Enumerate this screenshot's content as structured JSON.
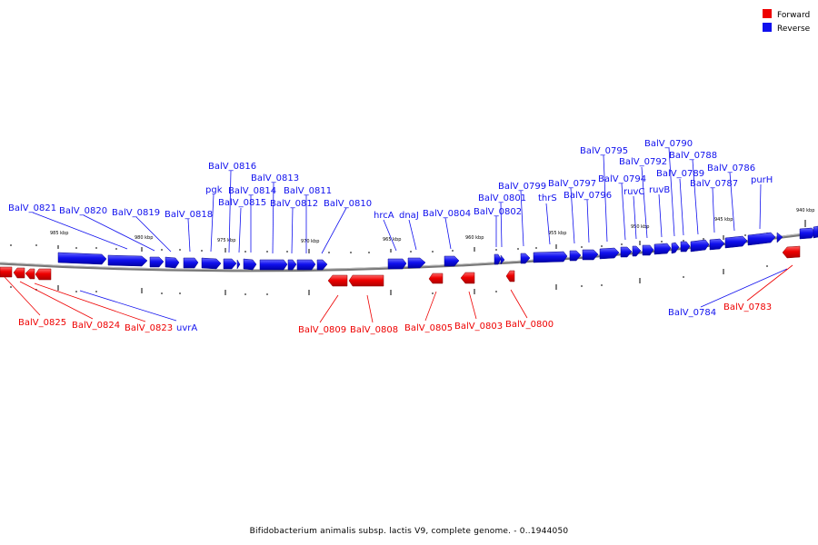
{
  "caption": "Bifidobacterium animalis subsp. lactis V9, complete genome. - 0..1944050",
  "legend": [
    {
      "label": "Forward",
      "color": "#ee0000"
    },
    {
      "label": "Reverse",
      "color": "#1010ee"
    }
  ],
  "colors": {
    "forward": "#ee0000",
    "reverse": "#1010ee",
    "backbone": "#777777"
  },
  "scale_labels": [
    "985 kbp",
    "980 kbp",
    "975 kbp",
    "970 kbp",
    "965 kbp",
    "960 kbp",
    "955 kbp",
    "950 kbp",
    "945 kbp",
    "940 kbp"
  ],
  "reverse_labels": [
    "BalV_0821",
    "BalV_0820",
    "BalV_0819",
    "BalV_0818",
    "pgk",
    "BalV_0816",
    "BalV_0815",
    "BalV_0814",
    "BalV_0813",
    "BalV_0812",
    "BalV_0811",
    "BalV_0810",
    "hrcA",
    "dnaJ",
    "BalV_0804",
    "BalV_0802",
    "BalV_0801",
    "BalV_0799",
    "thrS",
    "BalV_0797",
    "BalV_0796",
    "BalV_0795",
    "BalV_0794",
    "ruvC",
    "BalV_0792",
    "ruvB",
    "BalV_0790",
    "BalV_0789",
    "BalV_0788",
    "BalV_0787",
    "BalV_0786",
    "purH",
    "uvrA",
    "BalV_0784"
  ],
  "forward_labels": [
    "BalV_0825",
    "BalV_0824",
    "BalV_0823",
    "BalV_0809",
    "BalV_0808",
    "BalV_0805",
    "BalV_0803",
    "BalV_0800",
    "BalV_0783"
  ]
}
